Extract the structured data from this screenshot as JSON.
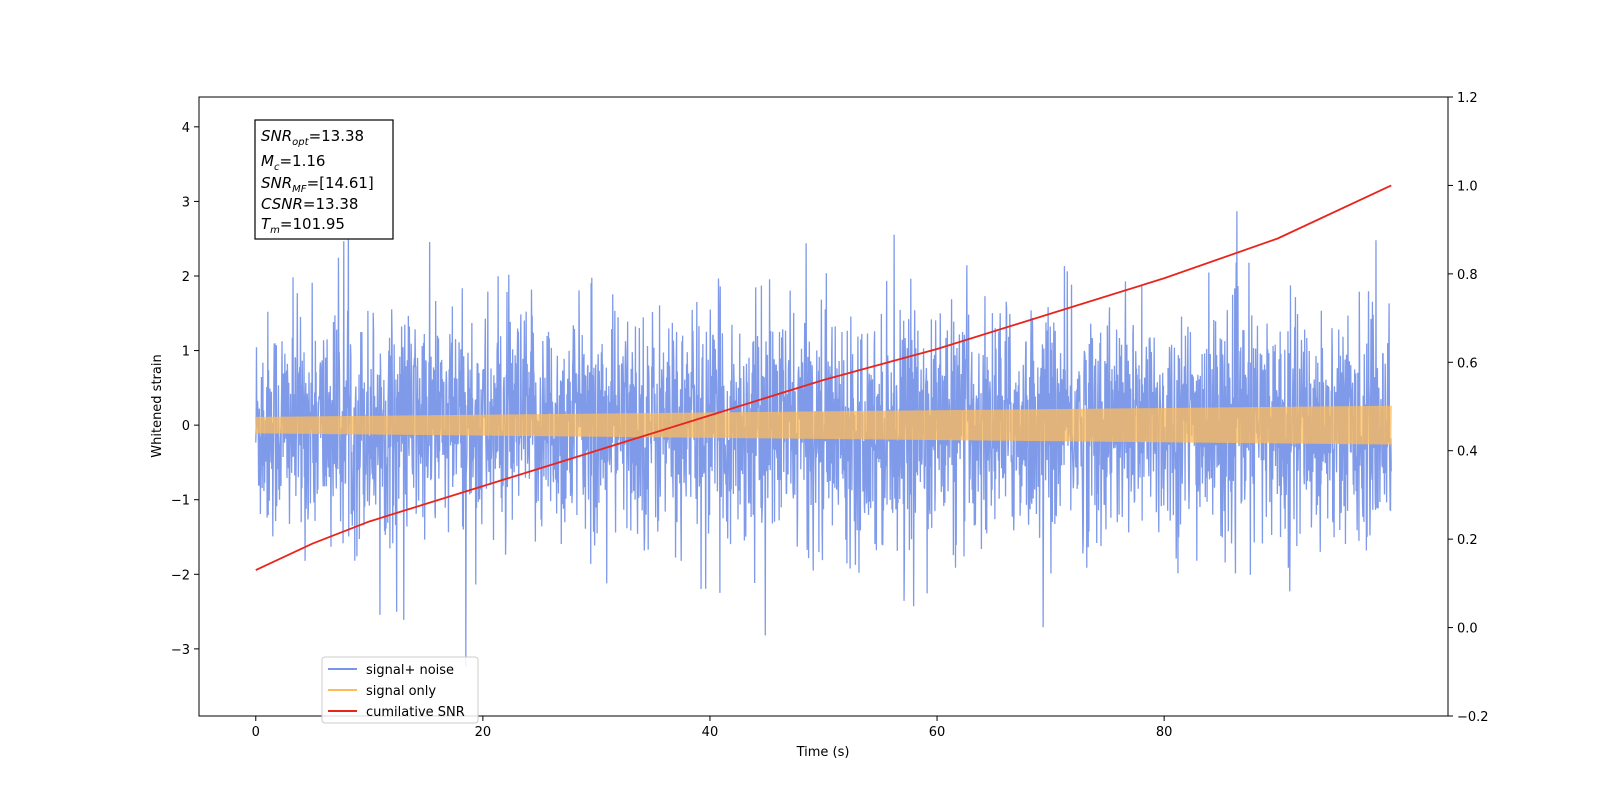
{
  "chart_data": {
    "type": "line",
    "title": "",
    "xlabel": "Time (s)",
    "ylabel": "Whitened strain",
    "y2label": "",
    "xlim": [
      -5,
      105
    ],
    "ylim": [
      -3.9,
      4.4
    ],
    "y2lim": [
      -0.2,
      1.2
    ],
    "x_ticks": [
      0,
      20,
      40,
      60,
      80
    ],
    "y_ticks": [
      -3,
      -2,
      -1,
      0,
      1,
      2,
      3,
      4
    ],
    "y2_ticks": [
      -0.2,
      0.0,
      0.2,
      0.4,
      0.6,
      0.8,
      1.0,
      1.2
    ],
    "x_tick_labels": [
      "0",
      "20",
      "40",
      "60",
      "80"
    ],
    "y_tick_labels": [
      "−3",
      "−2",
      "−1",
      "0",
      "1",
      "2",
      "3",
      "4"
    ],
    "y2_tick_labels": [
      "−0.2",
      "0.0",
      "0.2",
      "0.4",
      "0.6",
      "0.8",
      "1.0",
      "1.2"
    ],
    "grid": false,
    "legend_position": "lower-left",
    "series": [
      {
        "name": "signal+ noise",
        "axis": "left",
        "color": "#7895e8",
        "x_range": [
          0,
          100
        ],
        "envelope": {
          "typical_amplitude": 1.3,
          "max": 4.0,
          "min": -3.5
        }
      },
      {
        "name": "signal only",
        "axis": "left",
        "color": "#ffbb55",
        "x_range": [
          0,
          100
        ],
        "envelope": {
          "amplitude_start": 0.11,
          "amplitude_end": 0.26
        }
      },
      {
        "name": "cumilative SNR",
        "axis": "right",
        "color": "#e8251c",
        "x": [
          0,
          5,
          10,
          20,
          30,
          40,
          50,
          60,
          70,
          80,
          90,
          100
        ],
        "y": [
          0.13,
          0.19,
          0.24,
          0.32,
          0.4,
          0.48,
          0.56,
          0.63,
          0.71,
          0.79,
          0.88,
          1.0
        ]
      }
    ],
    "annotation_box": {
      "lines": [
        {
          "main": "SNR",
          "sub": "opt",
          "rest": "=13.38"
        },
        {
          "main": "M",
          "sub": "c",
          "rest": "=1.16"
        },
        {
          "main": "SNR",
          "sub": "MF",
          "rest": "=[14.61]"
        },
        {
          "main": "CSNR",
          "sub": "",
          "rest": "=13.38"
        },
        {
          "main": "T",
          "sub": "m",
          "rest": "=101.95"
        }
      ]
    }
  }
}
